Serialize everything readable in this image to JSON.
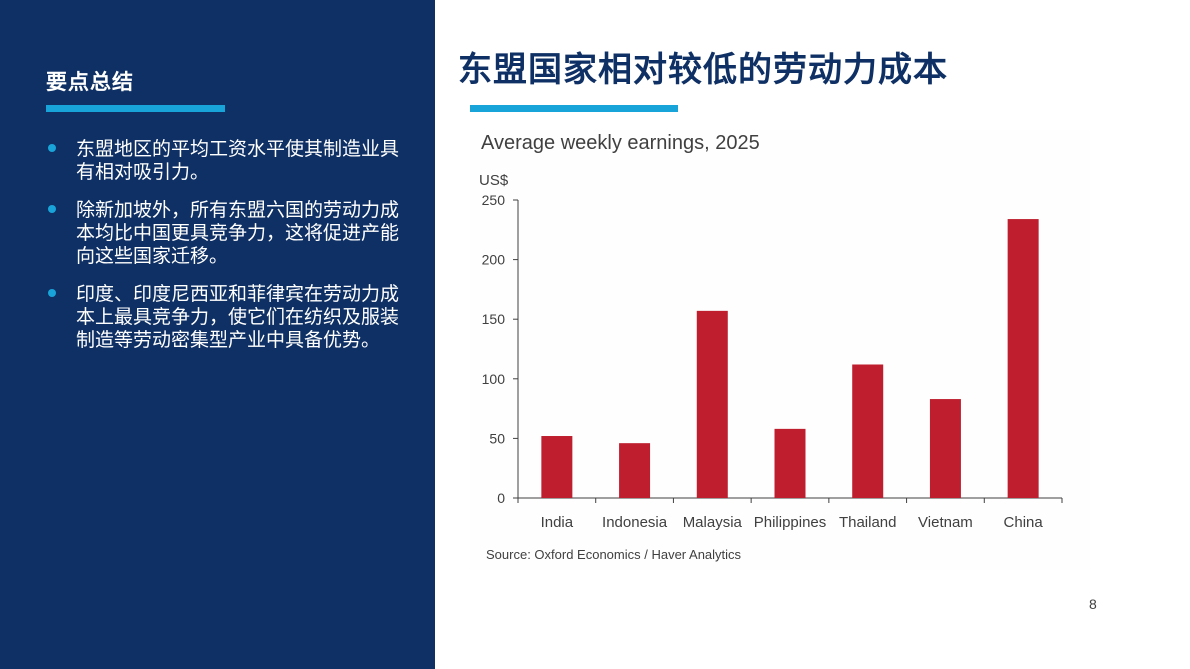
{
  "sidebar": {
    "heading": "要点总结",
    "bullets": [
      "东盟地区的平均工资水平使其制造业具有相对吸引力。",
      "除新加坡外，所有东盟六国的劳动力成本均比中国更具竞争力，这将促进产能向这些国家迁移。",
      "印度、印度尼西亚和菲律宾在劳动力成本上最具竞争力，使它们在纺织及服装制造等劳动密集型产业中具备优势。"
    ]
  },
  "main": {
    "title": "东盟国家相对较低的劳动力成本",
    "source": "Source: Oxford Economics / Haver Analytics",
    "page_number": "8"
  },
  "colors": {
    "bar": "#be1e2d",
    "panel": "#0f3064",
    "accent": "#19a4d9"
  },
  "chart_data": {
    "type": "bar",
    "title": "Average weekly earnings, 2025",
    "ylabel": "US$",
    "xlabel": "",
    "categories": [
      "India",
      "Indonesia",
      "Malaysia",
      "Philippines",
      "Thailand",
      "Vietnam",
      "China"
    ],
    "values": [
      52,
      46,
      157,
      58,
      112,
      83,
      234
    ],
    "ylim": [
      0,
      250
    ],
    "yticks": [
      0,
      50,
      100,
      150,
      200,
      250
    ],
    "grid": false,
    "legend": "none"
  }
}
